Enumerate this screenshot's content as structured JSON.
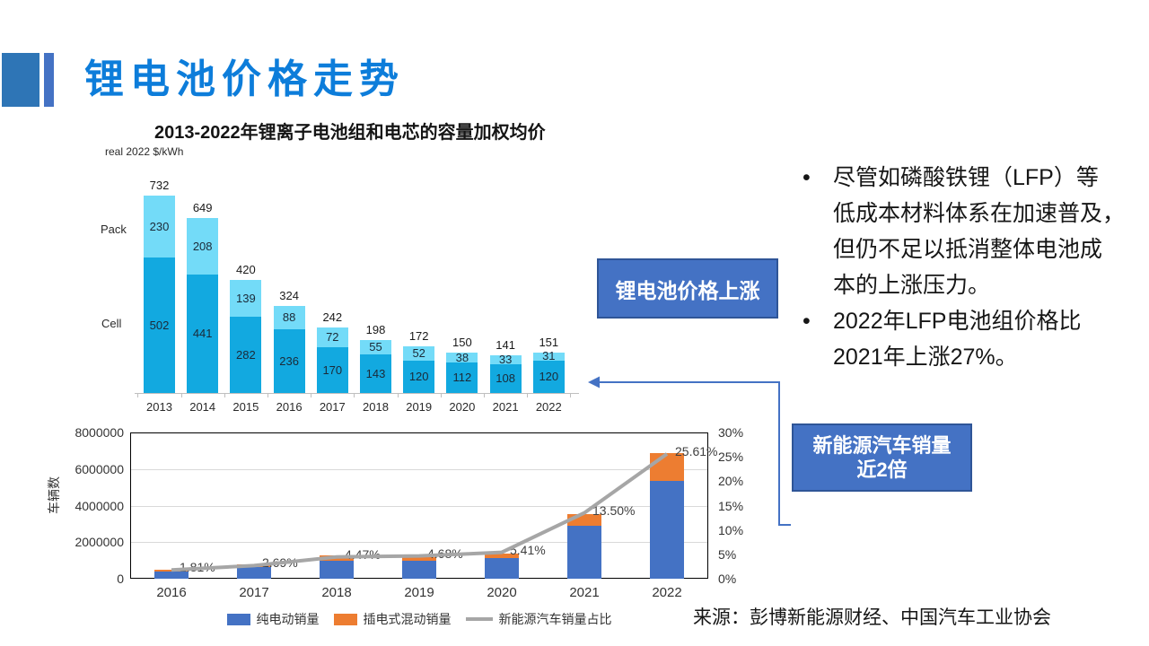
{
  "slide": {
    "title": "锂电池价格走势",
    "source": "来源：彭博新能源财经、中国汽车工业协会"
  },
  "bullets": [
    "尽管如磷酸铁锂（LFP）等\n低成本材料体系在加速普及，\n但仍不足以抵消整体电池成\n本的上涨压力。",
    "2022年LFP电池组价格比\n2021年上涨27%。"
  ],
  "callouts": {
    "battery_price": "锂电池价格上涨",
    "ev_sales": "新能源汽车销量\n近2倍"
  },
  "colors": {
    "title_blue": "#0D7DDA",
    "deco_blue": "#2E75B6",
    "callout_fill": "#4472C4",
    "callout_border": "#2F5597",
    "cell_bar": "#12A9E0",
    "pack_bar": "#73DBF8",
    "bev_bar": "#4472C4",
    "phev_bar": "#ED7D31",
    "share_line": "#A6A6A6"
  },
  "chart_data": [
    {
      "type": "bar",
      "stacked": true,
      "title": "2013-2022年锂离子电池组和电芯的容量加权均价",
      "unit_label": "real 2022 $/kWh",
      "categories": [
        "2013",
        "2014",
        "2015",
        "2016",
        "2017",
        "2018",
        "2019",
        "2020",
        "2021",
        "2022"
      ],
      "series": [
        {
          "name": "Cell",
          "color": "#12A9E0",
          "values": [
            502,
            441,
            282,
            236,
            170,
            143,
            120,
            112,
            108,
            120
          ]
        },
        {
          "name": "Pack",
          "color": "#73DBF8",
          "values": [
            230,
            208,
            139,
            88,
            72,
            55,
            52,
            38,
            33,
            31
          ]
        }
      ],
      "totals": [
        732,
        649,
        420,
        324,
        242,
        198,
        172,
        150,
        141,
        151
      ],
      "ylim": [
        0,
        800
      ],
      "grid": false,
      "legend_position": "left-labels"
    },
    {
      "type": "combo",
      "categories": [
        "2016",
        "2017",
        "2018",
        "2019",
        "2020",
        "2021",
        "2022"
      ],
      "xlabel": "",
      "ylabel": "车辆数",
      "ylim": [
        0,
        8000000
      ],
      "y_ticks": [
        "0",
        "2000000",
        "4000000",
        "6000000",
        "8000000"
      ],
      "y2lim": [
        0,
        30
      ],
      "y2_ticks": [
        "0%",
        "5%",
        "10%",
        "15%",
        "20%",
        "25%",
        "30%"
      ],
      "grid": true,
      "legend_position": "bottom",
      "series": [
        {
          "name": "纯电动销量",
          "type": "bar",
          "color": "#4472C4",
          "values": [
            409000,
            652000,
            984000,
            972000,
            1115000,
            2916000,
            5365000
          ]
        },
        {
          "name": "插电式混动销量",
          "type": "bar",
          "color": "#ED7D31",
          "values": [
            98000,
            125000,
            271000,
            232000,
            251000,
            603000,
            1518000
          ]
        },
        {
          "name": "新能源汽车销量占比",
          "type": "line",
          "axis": "right",
          "color": "#A6A6A6",
          "values": [
            1.81,
            2.69,
            4.47,
            4.68,
            5.41,
            13.5,
            25.61
          ],
          "labels": [
            "1.81%",
            "2.69%",
            "4.47%",
            "4.68%",
            "5.41%",
            "13.50%",
            "25.61%"
          ]
        }
      ]
    }
  ]
}
